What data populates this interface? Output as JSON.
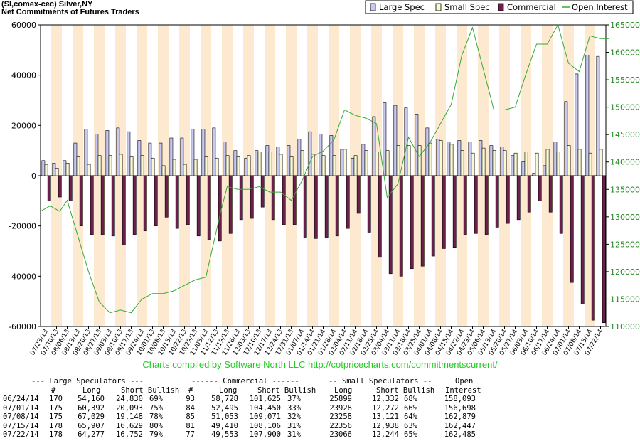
{
  "title": "(SI,comex-cec) Silver,NY",
  "subtitle": "Net Commitments of Futures Traders",
  "credit": "Charts compiled by Software North LLC  http://cotpricecharts.com/commitmentscurrent/",
  "colors": {
    "large_spec": "#c8c8f0",
    "small_spec": "#fafad2",
    "commercial": "#6b1f4a",
    "open_interest": "#33aa33",
    "band": "#fde9d0"
  },
  "chart_data": {
    "type": "bar",
    "legend": [
      "Large Spec",
      "Small Spec",
      "Commercial",
      "Open Interest"
    ],
    "legend_position": "top-right",
    "categories": [
      "07/23/13",
      "07/30/13",
      "08/06/13",
      "08/13/13",
      "08/20/13",
      "08/27/13",
      "09/03/13",
      "09/10/13",
      "09/17/13",
      "09/24/13",
      "10/01/13",
      "10/08/13",
      "10/15/13",
      "10/22/13",
      "10/29/13",
      "11/05/13",
      "11/12/13",
      "11/19/13",
      "11/26/13",
      "12/03/13",
      "12/10/13",
      "12/17/13",
      "12/24/13",
      "12/31/13",
      "01/07/14",
      "01/14/14",
      "01/21/14",
      "01/28/14",
      "02/04/14",
      "02/11/14",
      "02/18/14",
      "02/25/14",
      "03/04/14",
      "03/11/14",
      "03/18/14",
      "03/25/14",
      "04/01/14",
      "04/08/14",
      "04/15/14",
      "04/22/14",
      "04/29/14",
      "05/06/14",
      "05/13/14",
      "05/20/14",
      "05/27/14",
      "06/03/14",
      "06/10/14",
      "06/17/14",
      "06/24/14",
      "07/01/14",
      "07/08/14",
      "07/15/14",
      "07/22/14"
    ],
    "tick_labels": [
      "07/23/13",
      "07/30/13",
      "08/06/13",
      "08/13/13",
      "08/20/13",
      "08/27/13",
      "09/03/13",
      "09/10/13",
      "09/17/13",
      "09/24/13",
      "10/01/13",
      "10/08/13",
      "10/15/13",
      "10/22/13",
      "10/29/13",
      "11/05/13",
      "11/12/13",
      "11/19/13",
      "11/26/13",
      "12/03/13",
      "12/10/13",
      "12/17/13",
      "12/24/13",
      "12/31/13",
      "01/07/14",
      "01/14/14",
      "01/21/14",
      "01/28/14",
      "02/04/14",
      "02/11/14",
      "02/18/14",
      "02/25/14",
      "03/04/14",
      "03/11/14",
      "03/18/14",
      "03/25/14",
      "04/01/14",
      "04/08/14",
      "04/15/14",
      "04/22/14",
      "04/29/14",
      "05/06/14",
      "05/13/14",
      "05/20/14",
      "05/27/14",
      "06/03/14",
      "06/10/14",
      "06/17/14",
      "06/24/14",
      "07/01/14",
      "07/08/14",
      "07/15/14",
      "07/22/14"
    ],
    "left_axis": {
      "ylim": [
        -60000,
        60000
      ],
      "ticks": [
        "-60000",
        "-40000",
        "-20000",
        "0",
        "20000",
        "40000",
        "60000"
      ]
    },
    "right_axis": {
      "ylim": [
        110000,
        165000
      ],
      "ticks": [
        "110000",
        "115000",
        "120000",
        "125000",
        "130000",
        "135000",
        "140000",
        "145000",
        "150000",
        "155000",
        "160000",
        "165000"
      ]
    },
    "series": [
      {
        "name": "Large Spec",
        "axis": "left",
        "values": [
          6000,
          5000,
          6000,
          13000,
          18500,
          16500,
          18000,
          19000,
          17500,
          14000,
          13000,
          13000,
          15000,
          15000,
          18500,
          18500,
          19000,
          13500,
          10000,
          7000,
          10000,
          12000,
          11500,
          12000,
          14500,
          17500,
          16500,
          16000,
          10500,
          7000,
          12500,
          23500,
          29000,
          28000,
          27000,
          24500,
          19000,
          14500,
          13500,
          14000,
          13500,
          14000,
          12000,
          11500,
          8000,
          5500,
          1000,
          4000,
          13500,
          29500,
          40500,
          48000,
          47500
        ]
      },
      {
        "name": "Small Spec",
        "axis": "left",
        "values": [
          4500,
          3000,
          5000,
          7500,
          4500,
          8000,
          8000,
          8500,
          7500,
          8000,
          7000,
          4000,
          6500,
          4500,
          6500,
          7500,
          7000,
          8000,
          7500,
          8000,
          9500,
          9500,
          8500,
          7500,
          10000,
          8500,
          8000,
          8000,
          10500,
          8000,
          10000,
          9500,
          10000,
          12000,
          12000,
          12000,
          13000,
          14000,
          12500,
          10000,
          9000,
          11000,
          10000,
          10000,
          9000,
          9500,
          9000,
          10500,
          9500,
          12000,
          10500,
          9000,
          10500
        ]
      },
      {
        "name": "Commercial",
        "axis": "left",
        "values": [
          -10000,
          -8500,
          -10000,
          -20000,
          -23500,
          -23500,
          -24000,
          -27500,
          -23500,
          -22000,
          -20000,
          -16500,
          -21000,
          -19500,
          -24000,
          -25500,
          -26000,
          -23000,
          -17500,
          -17000,
          -12500,
          -17500,
          -19500,
          -19500,
          -24500,
          -25000,
          -24500,
          -24000,
          -21000,
          -15000,
          -22500,
          -32500,
          -39000,
          -40000,
          -37000,
          -36000,
          -32000,
          -29000,
          -28500,
          -23500,
          -23000,
          -23500,
          -20500,
          -19000,
          -17500,
          -14500,
          -10000,
          -14500,
          -23000,
          -42500,
          -51000,
          -57500,
          -58500
        ]
      },
      {
        "name": "Open Interest",
        "axis": "right",
        "values": [
          131000,
          132000,
          131000,
          133000,
          126500,
          120000,
          114500,
          112500,
          113000,
          112500,
          115000,
          116000,
          116000,
          116500,
          117500,
          118500,
          119000,
          131000,
          135500,
          135000,
          135000,
          135500,
          134500,
          134500,
          133000,
          136500,
          141000,
          142000,
          144000,
          149500,
          148500,
          148000,
          147000,
          133500,
          136000,
          144500,
          141000,
          143500,
          147000,
          150500,
          159500,
          164500,
          157000,
          149500,
          149500,
          150000,
          156000,
          161500,
          161500,
          165000,
          158000,
          156500,
          163000,
          162500,
          162500
        ],
        "x": [
          -0.5,
          0.4,
          1.3,
          2.0,
          3.0,
          4.0,
          5.0,
          6.0,
          7.0,
          8.0,
          9.0,
          10.0,
          11.0,
          12.0,
          13.0,
          14.0,
          15.0,
          16.4,
          17.0,
          18.0,
          19.0,
          20.0,
          21.0,
          22.0,
          23.0,
          24.0,
          25.0,
          26.0,
          27.0,
          28.0,
          29.0,
          30.0,
          31.0,
          32.0,
          33.0,
          34.0,
          35.0,
          36.0,
          37.0,
          38.0,
          39.0,
          40.0,
          41.0,
          42.0,
          43.0,
          44.0,
          45.0,
          46.0,
          47.0,
          48.0,
          49.0,
          50.0,
          51.0,
          52.0,
          52.8
        ]
      }
    ]
  },
  "table": {
    "header1": "--- Large Speculators ---        ------ Commercial ------        -- Small Speculators --         Open",
    "header2": "      #    Long   Short Bullish    #    Long     Short Bullish     Long     Short Bullish       Interest",
    "rows": [
      {
        "date": "06/24/14",
        "ls_n": "170",
        "ls_long": "54,160",
        "ls_short": "24,830",
        "ls_bull": "69%",
        "c_n": "93",
        "c_long": "58,728",
        "c_short": "101,625",
        "c_bull": "37%",
        "ss_long": "25899",
        "ss_short": "12,332",
        "ss_bull": "68%",
        "oi": "158,093"
      },
      {
        "date": "07/01/14",
        "ls_n": "175",
        "ls_long": "60,392",
        "ls_short": "20,093",
        "ls_bull": "75%",
        "c_n": "84",
        "c_long": "52,495",
        "c_short": "104,450",
        "c_bull": "33%",
        "ss_long": "23928",
        "ss_short": "12,272",
        "ss_bull": "66%",
        "oi": "156,698"
      },
      {
        "date": "07/08/14",
        "ls_n": "175",
        "ls_long": "67,029",
        "ls_short": "19,148",
        "ls_bull": "78%",
        "c_n": "85",
        "c_long": "51,053",
        "c_short": "109,071",
        "c_bull": "32%",
        "ss_long": "23258",
        "ss_short": "13,121",
        "ss_bull": "64%",
        "oi": "162,879"
      },
      {
        "date": "07/15/14",
        "ls_n": "178",
        "ls_long": "65,907",
        "ls_short": "16,629",
        "ls_bull": "80%",
        "c_n": "81",
        "c_long": "49,410",
        "c_short": "108,106",
        "c_bull": "31%",
        "ss_long": "22356",
        "ss_short": "12,938",
        "ss_bull": "63%",
        "oi": "162,447"
      },
      {
        "date": "07/22/14",
        "ls_n": "178",
        "ls_long": "64,277",
        "ls_short": "16,752",
        "ls_bull": "79%",
        "c_n": "77",
        "c_long": "49,553",
        "c_short": "107,900",
        "c_bull": "31%",
        "ss_long": "23066",
        "ss_short": "12,244",
        "ss_bull": "65%",
        "oi": "162,485"
      }
    ]
  }
}
